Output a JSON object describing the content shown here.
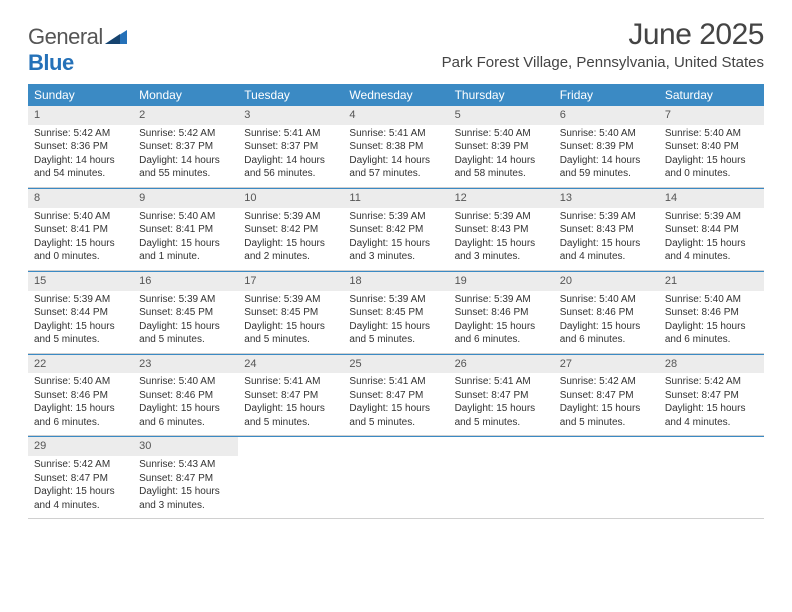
{
  "logo": {
    "general": "General",
    "blue": "Blue"
  },
  "title": "June 2025",
  "location": "Park Forest Village, Pennsylvania, United States",
  "colors": {
    "header_bg": "#3b8ac4",
    "daynum_bg": "#ececec",
    "rule": "#3b8ac4",
    "text": "#333333",
    "logo_blue": "#2571b8"
  },
  "typography": {
    "title_fontsize": 30,
    "location_fontsize": 15,
    "dow_fontsize": 12,
    "body_fontsize": 10
  },
  "days_of_week": [
    "Sunday",
    "Monday",
    "Tuesday",
    "Wednesday",
    "Thursday",
    "Friday",
    "Saturday"
  ],
  "weeks": [
    [
      {
        "num": "1",
        "sunrise": "Sunrise: 5:42 AM",
        "sunset": "Sunset: 8:36 PM",
        "day1": "Daylight: 14 hours",
        "day2": "and 54 minutes."
      },
      {
        "num": "2",
        "sunrise": "Sunrise: 5:42 AM",
        "sunset": "Sunset: 8:37 PM",
        "day1": "Daylight: 14 hours",
        "day2": "and 55 minutes."
      },
      {
        "num": "3",
        "sunrise": "Sunrise: 5:41 AM",
        "sunset": "Sunset: 8:37 PM",
        "day1": "Daylight: 14 hours",
        "day2": "and 56 minutes."
      },
      {
        "num": "4",
        "sunrise": "Sunrise: 5:41 AM",
        "sunset": "Sunset: 8:38 PM",
        "day1": "Daylight: 14 hours",
        "day2": "and 57 minutes."
      },
      {
        "num": "5",
        "sunrise": "Sunrise: 5:40 AM",
        "sunset": "Sunset: 8:39 PM",
        "day1": "Daylight: 14 hours",
        "day2": "and 58 minutes."
      },
      {
        "num": "6",
        "sunrise": "Sunrise: 5:40 AM",
        "sunset": "Sunset: 8:39 PM",
        "day1": "Daylight: 14 hours",
        "day2": "and 59 minutes."
      },
      {
        "num": "7",
        "sunrise": "Sunrise: 5:40 AM",
        "sunset": "Sunset: 8:40 PM",
        "day1": "Daylight: 15 hours",
        "day2": "and 0 minutes."
      }
    ],
    [
      {
        "num": "8",
        "sunrise": "Sunrise: 5:40 AM",
        "sunset": "Sunset: 8:41 PM",
        "day1": "Daylight: 15 hours",
        "day2": "and 0 minutes."
      },
      {
        "num": "9",
        "sunrise": "Sunrise: 5:40 AM",
        "sunset": "Sunset: 8:41 PM",
        "day1": "Daylight: 15 hours",
        "day2": "and 1 minute."
      },
      {
        "num": "10",
        "sunrise": "Sunrise: 5:39 AM",
        "sunset": "Sunset: 8:42 PM",
        "day1": "Daylight: 15 hours",
        "day2": "and 2 minutes."
      },
      {
        "num": "11",
        "sunrise": "Sunrise: 5:39 AM",
        "sunset": "Sunset: 8:42 PM",
        "day1": "Daylight: 15 hours",
        "day2": "and 3 minutes."
      },
      {
        "num": "12",
        "sunrise": "Sunrise: 5:39 AM",
        "sunset": "Sunset: 8:43 PM",
        "day1": "Daylight: 15 hours",
        "day2": "and 3 minutes."
      },
      {
        "num": "13",
        "sunrise": "Sunrise: 5:39 AM",
        "sunset": "Sunset: 8:43 PM",
        "day1": "Daylight: 15 hours",
        "day2": "and 4 minutes."
      },
      {
        "num": "14",
        "sunrise": "Sunrise: 5:39 AM",
        "sunset": "Sunset: 8:44 PM",
        "day1": "Daylight: 15 hours",
        "day2": "and 4 minutes."
      }
    ],
    [
      {
        "num": "15",
        "sunrise": "Sunrise: 5:39 AM",
        "sunset": "Sunset: 8:44 PM",
        "day1": "Daylight: 15 hours",
        "day2": "and 5 minutes."
      },
      {
        "num": "16",
        "sunrise": "Sunrise: 5:39 AM",
        "sunset": "Sunset: 8:45 PM",
        "day1": "Daylight: 15 hours",
        "day2": "and 5 minutes."
      },
      {
        "num": "17",
        "sunrise": "Sunrise: 5:39 AM",
        "sunset": "Sunset: 8:45 PM",
        "day1": "Daylight: 15 hours",
        "day2": "and 5 minutes."
      },
      {
        "num": "18",
        "sunrise": "Sunrise: 5:39 AM",
        "sunset": "Sunset: 8:45 PM",
        "day1": "Daylight: 15 hours",
        "day2": "and 5 minutes."
      },
      {
        "num": "19",
        "sunrise": "Sunrise: 5:39 AM",
        "sunset": "Sunset: 8:46 PM",
        "day1": "Daylight: 15 hours",
        "day2": "and 6 minutes."
      },
      {
        "num": "20",
        "sunrise": "Sunrise: 5:40 AM",
        "sunset": "Sunset: 8:46 PM",
        "day1": "Daylight: 15 hours",
        "day2": "and 6 minutes."
      },
      {
        "num": "21",
        "sunrise": "Sunrise: 5:40 AM",
        "sunset": "Sunset: 8:46 PM",
        "day1": "Daylight: 15 hours",
        "day2": "and 6 minutes."
      }
    ],
    [
      {
        "num": "22",
        "sunrise": "Sunrise: 5:40 AM",
        "sunset": "Sunset: 8:46 PM",
        "day1": "Daylight: 15 hours",
        "day2": "and 6 minutes."
      },
      {
        "num": "23",
        "sunrise": "Sunrise: 5:40 AM",
        "sunset": "Sunset: 8:46 PM",
        "day1": "Daylight: 15 hours",
        "day2": "and 6 minutes."
      },
      {
        "num": "24",
        "sunrise": "Sunrise: 5:41 AM",
        "sunset": "Sunset: 8:47 PM",
        "day1": "Daylight: 15 hours",
        "day2": "and 5 minutes."
      },
      {
        "num": "25",
        "sunrise": "Sunrise: 5:41 AM",
        "sunset": "Sunset: 8:47 PM",
        "day1": "Daylight: 15 hours",
        "day2": "and 5 minutes."
      },
      {
        "num": "26",
        "sunrise": "Sunrise: 5:41 AM",
        "sunset": "Sunset: 8:47 PM",
        "day1": "Daylight: 15 hours",
        "day2": "and 5 minutes."
      },
      {
        "num": "27",
        "sunrise": "Sunrise: 5:42 AM",
        "sunset": "Sunset: 8:47 PM",
        "day1": "Daylight: 15 hours",
        "day2": "and 5 minutes."
      },
      {
        "num": "28",
        "sunrise": "Sunrise: 5:42 AM",
        "sunset": "Sunset: 8:47 PM",
        "day1": "Daylight: 15 hours",
        "day2": "and 4 minutes."
      }
    ],
    [
      {
        "num": "29",
        "sunrise": "Sunrise: 5:42 AM",
        "sunset": "Sunset: 8:47 PM",
        "day1": "Daylight: 15 hours",
        "day2": "and 4 minutes."
      },
      {
        "num": "30",
        "sunrise": "Sunrise: 5:43 AM",
        "sunset": "Sunset: 8:47 PM",
        "day1": "Daylight: 15 hours",
        "day2": "and 3 minutes."
      },
      null,
      null,
      null,
      null,
      null
    ]
  ]
}
